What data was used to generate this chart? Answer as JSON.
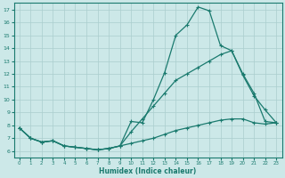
{
  "xlabel": "Humidex (Indice chaleur)",
  "xlim": [
    -0.5,
    23.5
  ],
  "ylim": [
    5.5,
    17.5
  ],
  "yticks": [
    6,
    7,
    8,
    9,
    10,
    11,
    12,
    13,
    14,
    15,
    16,
    17
  ],
  "xticks": [
    0,
    1,
    2,
    3,
    4,
    5,
    6,
    7,
    8,
    9,
    10,
    11,
    12,
    13,
    14,
    15,
    16,
    17,
    18,
    19,
    20,
    21,
    22,
    23
  ],
  "line_color": "#1a7a6e",
  "bg_color": "#cce8e8",
  "grid_color": "#aacece",
  "line1_x": [
    0,
    1,
    2,
    3,
    4,
    5,
    6,
    7,
    8,
    9,
    10,
    11,
    12,
    13,
    14,
    15,
    16,
    17,
    18,
    19,
    20,
    21,
    22,
    23
  ],
  "line1_y": [
    7.8,
    7.0,
    6.7,
    6.8,
    6.4,
    6.3,
    6.2,
    6.1,
    6.2,
    6.4,
    8.3,
    8.2,
    10.0,
    12.1,
    15.0,
    15.8,
    17.2,
    16.9,
    14.2,
    13.8,
    11.9,
    10.3,
    9.2,
    8.2
  ],
  "line2_x": [
    0,
    1,
    2,
    3,
    4,
    5,
    6,
    7,
    8,
    9,
    10,
    11,
    12,
    13,
    14,
    15,
    16,
    17,
    18,
    19,
    20,
    21,
    22,
    23
  ],
  "line2_y": [
    7.8,
    7.0,
    6.7,
    6.8,
    6.4,
    6.3,
    6.2,
    6.1,
    6.2,
    6.4,
    7.5,
    8.5,
    9.5,
    10.5,
    11.5,
    12.0,
    12.5,
    13.0,
    13.5,
    13.8,
    12.0,
    10.5,
    8.3,
    8.2
  ],
  "line3_x": [
    0,
    1,
    2,
    3,
    4,
    5,
    6,
    7,
    8,
    9,
    10,
    11,
    12,
    13,
    14,
    15,
    16,
    17,
    18,
    19,
    20,
    21,
    22,
    23
  ],
  "line3_y": [
    7.8,
    7.0,
    6.7,
    6.8,
    6.4,
    6.3,
    6.2,
    6.1,
    6.2,
    6.4,
    6.6,
    6.8,
    7.0,
    7.3,
    7.6,
    7.8,
    8.0,
    8.2,
    8.4,
    8.5,
    8.5,
    8.2,
    8.1,
    8.2
  ]
}
